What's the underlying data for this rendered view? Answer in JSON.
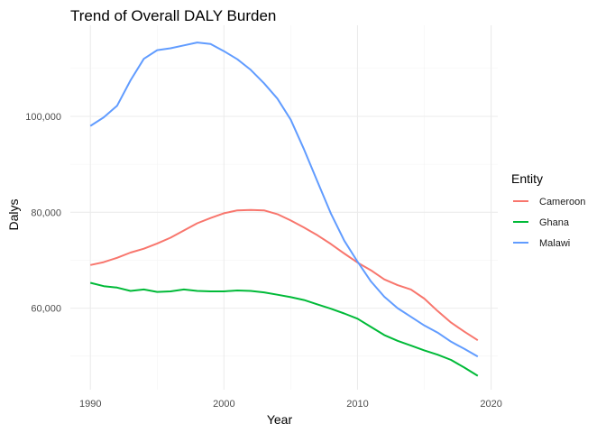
{
  "chart_data": {
    "type": "line",
    "title": "Trend of Overall DALY Burden",
    "xlabel": "Year",
    "ylabel": "Dalys",
    "x": [
      1990,
      1991,
      1992,
      1993,
      1994,
      1995,
      1996,
      1997,
      1998,
      1999,
      2000,
      2001,
      2002,
      2003,
      2004,
      2005,
      2006,
      2007,
      2008,
      2009,
      2010,
      2011,
      2012,
      2013,
      2014,
      2015,
      2016,
      2017,
      2018,
      2019
    ],
    "series": [
      {
        "name": "Cameroon",
        "color": "#F8766D",
        "values": [
          69000,
          69600,
          70500,
          71600,
          72400,
          73500,
          74700,
          76200,
          77700,
          78800,
          79800,
          80400,
          80500,
          80400,
          79600,
          78300,
          76800,
          75200,
          73400,
          71400,
          69500,
          67900,
          66000,
          64800,
          63900,
          62000,
          59400,
          57000,
          55100,
          53300
        ]
      },
      {
        "name": "Ghana",
        "color": "#00BA38",
        "values": [
          65300,
          64600,
          64300,
          63600,
          63900,
          63400,
          63500,
          63900,
          63600,
          63500,
          63500,
          63700,
          63600,
          63300,
          62800,
          62300,
          61700,
          60800,
          59900,
          58900,
          57800,
          56100,
          54400,
          53200,
          52200,
          51200,
          50300,
          49200,
          47600,
          45900
        ]
      },
      {
        "name": "Malawi",
        "color": "#619CFF",
        "values": [
          98000,
          99800,
          102200,
          107500,
          112000,
          113800,
          114200,
          114800,
          115400,
          115100,
          113600,
          111900,
          109700,
          106900,
          103700,
          99300,
          93100,
          86400,
          79800,
          74100,
          69700,
          65600,
          62400,
          60000,
          58200,
          56400,
          54900,
          53000,
          51500,
          49900
        ]
      }
    ],
    "x_ticks": [
      "1990",
      "2000",
      "2010",
      "2020"
    ],
    "y_ticks": [
      "60,000",
      "80,000",
      "100,000"
    ],
    "xlim": [
      1988.5,
      2020.5
    ],
    "ylim": [
      43000,
      119000
    ],
    "legend": {
      "title": "Entity",
      "position": "right"
    },
    "grid": true
  }
}
